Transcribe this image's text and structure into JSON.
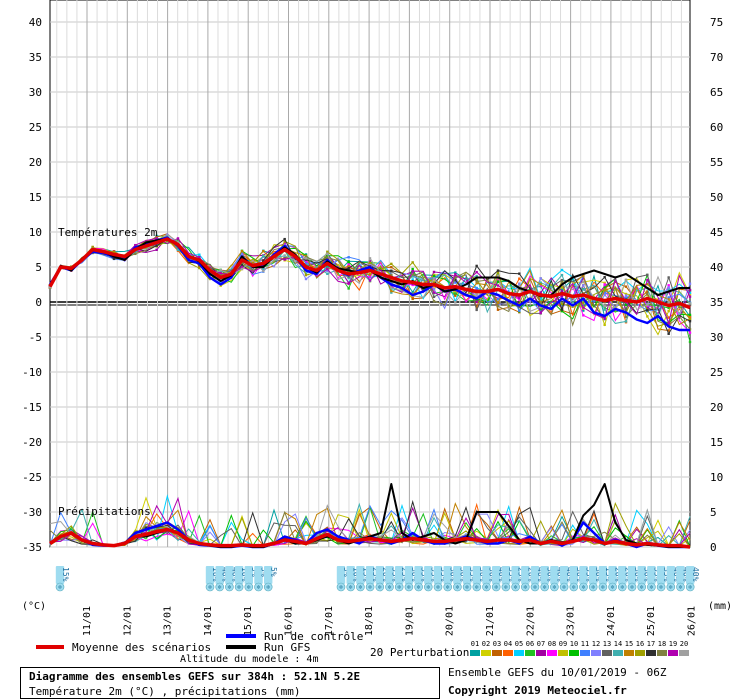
{
  "chart_data": {
    "type": "line",
    "title": "Diagramme des ensembles GEFS sur 384h : 52.1N 5.2E",
    "subtitle": "Température 2m (°C) , précipitations (mm)",
    "left_axis": {
      "unit": "(°C)",
      "ticks": [
        40,
        35,
        30,
        25,
        20,
        15,
        10,
        5,
        0,
        -5,
        -10,
        -15,
        -20,
        -25,
        -30,
        -35
      ]
    },
    "right_axis": {
      "unit": "(mm)",
      "ticks": [
        75,
        70,
        65,
        60,
        55,
        50,
        45,
        40,
        35,
        30,
        25,
        20,
        15,
        10,
        5,
        0
      ]
    },
    "x_ticks": [
      "11/01",
      "12/01",
      "13/01",
      "14/01",
      "15/01",
      "16/01",
      "17/01",
      "18/01",
      "19/01",
      "20/01",
      "21/01",
      "22/01",
      "23/01",
      "24/01",
      "25/01",
      "26/01"
    ],
    "section_labels": {
      "temperature": "Températures 2m",
      "precipitation": "Précipitations"
    },
    "grid": true,
    "series": [
      {
        "name": "Moyenne des scénarios",
        "color": "#e00000",
        "temp": [
          2.2,
          5,
          4.8,
          6,
          7.5,
          7.2,
          6.8,
          6.5,
          7.5,
          8,
          8.5,
          9,
          8.2,
          6.5,
          6,
          4.5,
          3.5,
          4,
          6,
          5.2,
          5.5,
          6.5,
          7.5,
          6.5,
          5,
          4.5,
          5.5,
          4.5,
          4,
          4.2,
          4.5,
          4,
          3.5,
          3,
          2.8,
          2.5,
          2.5,
          2,
          2.2,
          1.8,
          1.5,
          1.5,
          1.8,
          1.2,
          1,
          1.5,
          1,
          0.8,
          1.2,
          0.8,
          1,
          0.5,
          0.2,
          0.5,
          0.2,
          0,
          0.5,
          0,
          -0.5,
          -0.2,
          -0.8
        ],
        "precip": [
          0.5,
          1.5,
          2,
          1,
          0.5,
          0.3,
          0.2,
          0.5,
          1.5,
          1.8,
          2.2,
          2.5,
          2,
          1,
          0.5,
          0.3,
          0.2,
          0.2,
          0.3,
          0.2,
          0.2,
          0.5,
          1,
          0.8,
          0.5,
          1.2,
          1.8,
          1,
          0.8,
          1,
          1.2,
          1,
          0.8,
          1,
          1.2,
          1,
          0.8,
          0.8,
          1,
          1.2,
          1,
          0.8,
          1,
          1,
          0.8,
          1,
          0.5,
          0.8,
          0.5,
          0.8,
          1.2,
          1,
          0.5,
          0.8,
          0.5,
          0.3,
          0.5,
          0.3,
          0.2,
          0.2,
          0
        ]
      },
      {
        "name": "Run de contrôle",
        "color": "#0000ff",
        "temp": [
          2.5,
          5,
          4.5,
          6,
          7.2,
          7,
          6.5,
          6.2,
          7.8,
          8.2,
          8.8,
          9.2,
          8,
          6,
          5.5,
          3.5,
          2.5,
          3.5,
          6.5,
          5,
          5.2,
          6.8,
          8,
          6.5,
          4.5,
          4,
          6,
          4.5,
          3.8,
          4.5,
          5,
          3.5,
          2.5,
          2,
          1,
          1.5,
          2.5,
          1.5,
          1.8,
          1,
          0.5,
          1.5,
          1,
          0.2,
          -0.5,
          0.5,
          -0.5,
          -1,
          0.5,
          -0.5,
          0.5,
          -1.5,
          -2,
          -1,
          -1.5,
          -2.5,
          -3,
          -2,
          -3.5,
          -4,
          -4
        ],
        "precip": [
          0.5,
          1.5,
          2,
          1,
          0.3,
          0.2,
          0.2,
          0.5,
          2,
          2.5,
          3,
          3.5,
          2.5,
          1,
          0.3,
          0.2,
          0,
          0,
          0.2,
          0,
          0,
          0.5,
          1.5,
          1,
          0.5,
          2,
          2.5,
          1.5,
          1,
          0.5,
          1.5,
          1,
          0.5,
          1,
          2,
          1,
          0.5,
          0.5,
          1,
          1.5,
          1,
          0.5,
          0.5,
          1,
          0.5,
          1.5,
          0.5,
          1,
          0.2,
          1,
          3.5,
          2,
          0.5,
          1,
          0.5,
          0,
          0.5,
          0.2,
          0,
          0,
          0
        ]
      },
      {
        "name": "Run GFS",
        "color": "#000000",
        "temp": [
          2.2,
          5.2,
          4.5,
          6.2,
          7.5,
          7.2,
          6.5,
          6,
          7.5,
          8.5,
          8.8,
          9,
          8.2,
          6.5,
          5.8,
          4,
          3,
          3.8,
          6.5,
          5,
          5,
          6.5,
          7.8,
          6.8,
          5,
          4.2,
          5.8,
          4.8,
          4.5,
          4.2,
          4.5,
          3.5,
          3,
          2.5,
          3,
          2,
          2.5,
          1.5,
          1.8,
          2.5,
          3.5,
          3.5,
          3.5,
          3,
          2,
          1.5,
          0.8,
          1,
          2.5,
          3.5,
          4,
          4.5,
          4,
          3.5,
          4,
          3,
          2,
          1,
          1.5,
          2,
          2
        ],
        "precip": [
          0.5,
          1.5,
          2,
          1,
          0.5,
          0.3,
          0.2,
          0.5,
          1.5,
          1.5,
          2,
          2.5,
          2,
          1,
          0.5,
          0.2,
          0,
          0,
          0.3,
          0,
          0,
          0.5,
          1,
          0.5,
          0.5,
          1,
          1.5,
          1,
          0.5,
          1,
          1.5,
          2,
          9,
          2,
          1,
          1.5,
          2,
          1,
          0.5,
          1,
          5,
          5,
          5,
          3,
          1,
          0.5,
          0.5,
          1,
          0.5,
          1,
          4.5,
          6,
          9,
          3.5,
          1,
          0.5,
          0.3,
          0.2,
          0,
          0,
          0
        ]
      }
    ],
    "perturbation_colors": [
      "#00a0a0",
      "#d0d000",
      "#c06000",
      "#ff6000",
      "#00d0ff",
      "#20c020",
      "#a000a0",
      "#ff00ff",
      "#c0c000",
      "#00c000",
      "#4080ff",
      "#8080ff",
      "#606060",
      "#40b0b0",
      "#c08000",
      "#a0a000",
      "#303030",
      "#808040",
      "#b000b0",
      "#a0a0a0"
    ],
    "precip_probability": {
      "block1": [
        "15%"
      ],
      "block2": [
        "10%",
        "40%",
        "40%",
        "10%",
        "5%",
        "5%",
        "5%"
      ],
      "block3": [
        "5%",
        "10%",
        "15%",
        "25%",
        "20%",
        "35%",
        "25%",
        "30%",
        "35%",
        "35%",
        "35%",
        "30%",
        "30%",
        "35%",
        "30%",
        "30%",
        "40%",
        "35%",
        "25%",
        "20%",
        "40%",
        "30%",
        "40%",
        "40%",
        "30%",
        "35%",
        "30%",
        "15%",
        "20%",
        "20%",
        "30%",
        "30%",
        "35%",
        "35%",
        "40%",
        "40%",
        "40%"
      ]
    }
  },
  "legend": {
    "mean": "Moyenne des scénarios",
    "control": "Run de contrôle",
    "gfs": "Run GFS",
    "perturbations": "20 Perturbations",
    "perturbation_numbers": [
      "01",
      "02",
      "03",
      "04",
      "05",
      "06",
      "07",
      "08",
      "09",
      "10",
      "11",
      "12",
      "13",
      "14",
      "15",
      "16",
      "17",
      "18",
      "19",
      "20"
    ]
  },
  "footer": {
    "altitude": "Altitude du modele : 4m",
    "title": "Diagramme des ensembles GEFS sur 384h : 52.1N 5.2E",
    "subtitle": "Température 2m (°C) , précipitations (mm)",
    "ensemble_run": "Ensemble GEFS du 10/01/2019 - 06Z",
    "copyright": "Copyright 2019 Meteociel.fr"
  }
}
